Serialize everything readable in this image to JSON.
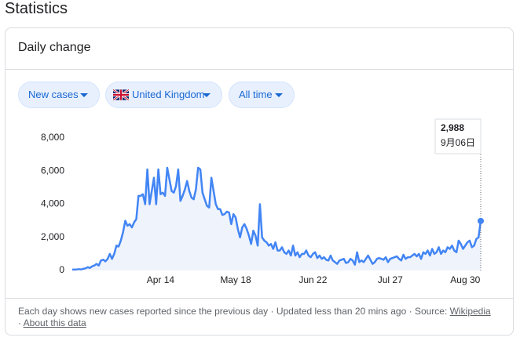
{
  "header": {
    "title": "Statistics"
  },
  "card": {
    "title": "Daily change",
    "chips": [
      "New cases",
      "United Kingdom",
      "All time"
    ],
    "footer": {
      "note": "Each day shows new cases reported since the previous day · Updated less than 20 mins ago · Source:",
      "source_link": "Wikipedia",
      "about_link": "About this data"
    }
  },
  "chart_data": {
    "type": "line",
    "color": "#4285f4",
    "grid": false,
    "ylim": [
      0,
      8000
    ],
    "yticks": [
      0,
      {
        "value": 2000,
        "label": "2,000"
      },
      {
        "value": 4000,
        "label": "4,000"
      },
      {
        "value": 6000,
        "label": "6,000"
      },
      {
        "value": 8000,
        "label": "8,000"
      }
    ],
    "categories": [
      null,
      null,
      null,
      null,
      null,
      null,
      null,
      null,
      null,
      null,
      null,
      null,
      null,
      null,
      null,
      null,
      null,
      null,
      null,
      null,
      null,
      null,
      null,
      null,
      null,
      null,
      null,
      null,
      null,
      null,
      null,
      null,
      null,
      null,
      null,
      null,
      null,
      null,
      null,
      null,
      "Apr 14",
      null,
      null,
      null,
      null,
      null,
      null,
      null,
      null,
      null,
      null,
      null,
      null,
      null,
      null,
      null,
      null,
      null,
      null,
      null,
      null,
      null,
      null,
      null,
      null,
      null,
      null,
      null,
      null,
      null,
      null,
      null,
      null,
      null,
      "May 18",
      null,
      null,
      null,
      null,
      null,
      null,
      null,
      null,
      null,
      null,
      null,
      null,
      null,
      null,
      null,
      null,
      null,
      null,
      null,
      null,
      null,
      null,
      null,
      null,
      null,
      null,
      null,
      null,
      null,
      null,
      null,
      null,
      null,
      null,
      "Jun 22",
      null,
      null,
      null,
      null,
      null,
      null,
      null,
      null,
      null,
      null,
      null,
      null,
      null,
      null,
      null,
      null,
      null,
      null,
      null,
      null,
      null,
      null,
      null,
      null,
      null,
      null,
      null,
      null,
      null,
      null,
      null,
      null,
      null,
      null,
      "Jul 27",
      null,
      null,
      null,
      null,
      null,
      null,
      null,
      null,
      null,
      null,
      null,
      null,
      null,
      null,
      null,
      null,
      null,
      null,
      null,
      null,
      null,
      null,
      null,
      null,
      null,
      null,
      null,
      null,
      null,
      null,
      null,
      null,
      null,
      "Aug 30",
      null,
      null,
      null,
      null,
      null,
      null,
      null
    ],
    "values": [
      50,
      50,
      60,
      80,
      60,
      100,
      130,
      200,
      150,
      250,
      300,
      400,
      300,
      600,
      650,
      550,
      700,
      1000,
      700,
      1000,
      1500,
      1450,
      1800,
      2300,
      3000,
      2700,
      2800,
      2600,
      2900,
      3100,
      4500,
      4500,
      4600,
      4000,
      6100,
      4000,
      4800,
      5600,
      4000,
      6100,
      4600,
      4700,
      4500,
      6200,
      5500,
      4800,
      4700,
      5100,
      6100,
      4200,
      4500,
      4900,
      5400,
      4800,
      4400,
      4300,
      4900,
      6200,
      6100,
      4700,
      4300,
      3900,
      3800,
      5600,
      4800,
      4000,
      3700,
      3700,
      3350,
      3400,
      3550,
      3500,
      2800,
      3400,
      3200,
      2500,
      2000,
      2600,
      2800,
      2500,
      2100,
      1600,
      2400,
      2100,
      1500,
      4000,
      2000,
      1800,
      1700,
      1500,
      1600,
      1300,
      1700,
      1200,
      1200,
      1400,
      1100,
      1000,
      1200,
      900,
      1500,
      900,
      1100,
      800,
      1000,
      1000,
      1200,
      900,
      800,
      1000,
      1100,
      750,
      900,
      700,
      800,
      650,
      600,
      900,
      600,
      500,
      400,
      600,
      650,
      700,
      450,
      500,
      700,
      600,
      350,
      1100,
      500,
      600,
      500,
      700,
      900,
      650,
      400,
      500,
      700,
      750,
      700,
      650,
      800,
      500,
      700,
      750,
      800,
      850,
      700,
      600,
      950,
      700,
      800,
      800,
      900,
      1000,
      850,
      1000,
      700,
      1100,
      1000,
      1200,
      900,
      1300,
      1000,
      1100,
      1400,
      1000,
      1200,
      1100,
      1400,
      1300,
      1500,
      1200,
      1100,
      1800,
      1600,
      1300,
      1500,
      1700,
      1800,
      1400,
      1500,
      1900,
      2000,
      2988
    ],
    "value_labels": [
      null,
      null,
      null,
      null,
      null,
      null,
      null,
      null,
      null,
      null,
      null,
      null,
      null,
      null,
      null,
      null,
      null,
      null,
      null,
      null,
      null,
      null,
      null,
      null,
      null,
      null,
      null,
      null,
      null,
      null,
      null,
      null,
      null,
      null,
      null,
      null,
      null,
      null,
      null,
      null,
      null,
      null,
      null,
      null,
      null,
      null,
      null,
      null,
      null,
      null,
      null,
      null,
      null,
      null,
      null,
      null,
      null,
      null,
      null,
      null,
      null,
      null,
      null,
      null,
      null,
      null,
      null,
      null,
      null,
      null,
      null,
      null,
      null,
      null,
      null,
      null,
      null,
      null,
      null,
      null,
      null,
      null,
      null,
      null,
      null,
      null,
      null,
      null,
      null,
      null,
      null,
      null,
      null,
      null,
      null,
      null,
      null,
      null,
      null,
      null,
      null,
      null,
      null,
      null,
      null,
      null,
      null,
      null,
      null,
      null,
      null,
      null,
      null,
      null,
      null,
      null,
      null,
      null,
      null,
      null,
      null,
      null,
      null,
      null,
      null,
      null,
      null,
      null,
      null,
      null,
      null,
      null,
      null,
      null,
      null,
      null,
      null,
      null,
      null,
      null,
      null,
      null,
      null,
      null,
      null,
      null,
      null,
      null,
      null,
      null,
      null,
      null,
      null,
      null,
      null,
      null,
      null,
      null,
      null,
      null,
      null,
      null,
      null,
      null,
      null,
      null,
      null,
      null,
      null,
      null,
      null,
      null,
      null,
      null,
      null,
      null,
      null,
      null,
      null,
      null,
      null,
      null,
      null,
      null,
      null,
      "2,988"
    ],
    "tooltip_date": "9月06日"
  }
}
